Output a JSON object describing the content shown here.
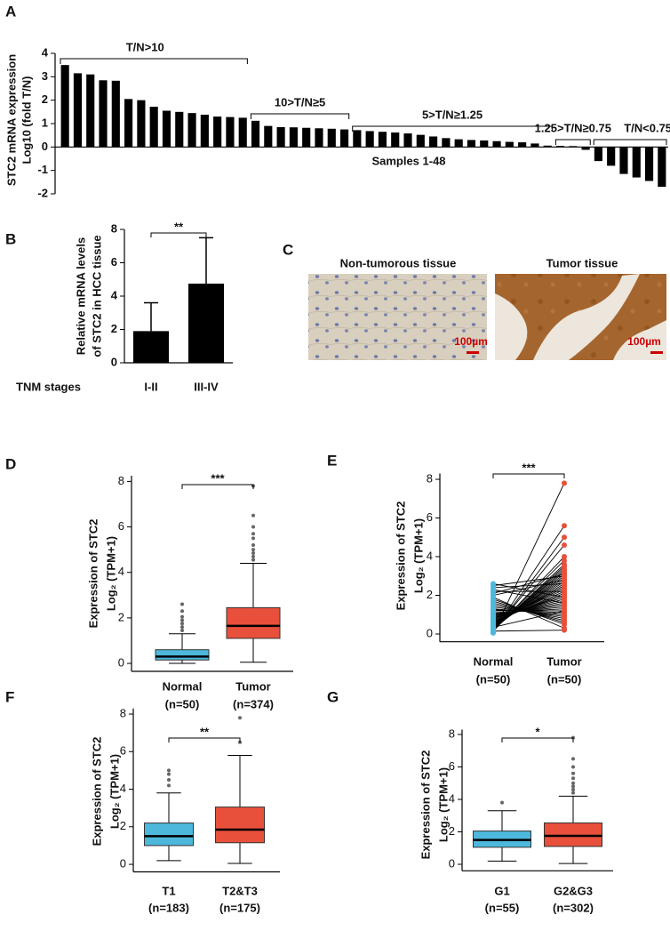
{
  "chart_data": [
    {
      "type": "waterfall_bar",
      "panel": "A",
      "ylabel": [
        "STC2 mRNA expression",
        "Log10 (fold T/N)"
      ],
      "xlabel": "Samples 1-48",
      "values": [
        3.5,
        3.15,
        3.1,
        2.85,
        2.83,
        2.05,
        2.0,
        1.72,
        1.55,
        1.5,
        1.45,
        1.38,
        1.3,
        1.28,
        1.25,
        1.12,
        0.9,
        0.85,
        0.84,
        0.82,
        0.8,
        0.78,
        0.75,
        0.72,
        0.68,
        0.65,
        0.62,
        0.58,
        0.52,
        0.45,
        0.38,
        0.33,
        0.3,
        0.28,
        0.25,
        0.22,
        0.2,
        0.15,
        0.06,
        0.05,
        0.04,
        -0.12,
        -0.6,
        -0.8,
        -1.15,
        -1.3,
        -1.45,
        -1.7
      ],
      "color": "#000000",
      "ylim": [
        -2,
        4
      ],
      "yticks": [
        -2,
        -1,
        0,
        1,
        2,
        3,
        4
      ],
      "annotations": [
        "T/N>10",
        "10>T/N≥5",
        "5>T/N≥1.25",
        "1.25>T/N≥0.75",
        "T/N<0.75"
      ]
    },
    {
      "type": "errorbar_bar",
      "panel": "B",
      "ylabel": [
        "Relative mRNA levels",
        "of STC2 in HCC tissue"
      ],
      "xlabel": "TNM stages",
      "categories": [
        "I-II",
        "III-IV"
      ],
      "values": [
        1.9,
        4.75
      ],
      "errors": [
        1.7,
        2.75
      ],
      "color": "#000000",
      "ylim": [
        0,
        8
      ],
      "yticks": [
        0,
        2,
        4,
        6,
        8
      ],
      "significance": "**"
    },
    {
      "type": "box",
      "panel": "D",
      "ylabel": [
        "Expression of STC2",
        "Log₂ (TPM+1)"
      ],
      "categories": [
        "Normal",
        "Tumor"
      ],
      "n_labels": [
        "(n=50)",
        "(n=374)"
      ],
      "colors": [
        "#4db8dc",
        "#e8503c"
      ],
      "ylim": [
        -0.35,
        8.25
      ],
      "yticks": [
        0,
        2,
        4,
        6,
        8
      ],
      "significance": "***",
      "boxes": [
        {
          "whisker_low": 0.0,
          "q1": 0.15,
          "median": 0.3,
          "q3": 0.6,
          "whisker_high": 1.3,
          "outliers": [
            1.45,
            1.6,
            1.75,
            1.9,
            2.05,
            2.3,
            2.6
          ]
        },
        {
          "whisker_low": 0.05,
          "q1": 1.1,
          "median": 1.65,
          "q3": 2.45,
          "whisker_high": 4.4,
          "outliers": [
            4.55,
            4.7,
            4.85,
            5.0,
            5.2,
            5.5,
            5.7,
            6.0,
            6.5,
            7.8
          ]
        }
      ]
    },
    {
      "type": "paired",
      "panel": "E",
      "ylabel": [
        "Expression of STC2",
        "Log₂ (TPM+1)"
      ],
      "n_labels": [
        "(n=50)",
        "(n=50)"
      ],
      "ylim": [
        -0.4,
        8.3
      ],
      "yticks": [
        0,
        2,
        4,
        6,
        8
      ],
      "significance": "***",
      "series": [
        {
          "name": "Normal",
          "color": "#4db8dc",
          "values": [
            0.05,
            0.1,
            0.1,
            0.15,
            0.15,
            0.2,
            0.2,
            0.2,
            0.25,
            0.25,
            0.3,
            0.3,
            0.3,
            0.35,
            0.4,
            0.4,
            0.45,
            0.5,
            0.5,
            0.55,
            0.6,
            0.6,
            0.65,
            0.7,
            0.75,
            0.8,
            0.85,
            0.9,
            0.95,
            1.0,
            1.05,
            1.1,
            1.2,
            1.25,
            1.3,
            1.4,
            1.5,
            1.6,
            1.7,
            1.8,
            1.9,
            2.0,
            2.1,
            2.2,
            2.3,
            2.4,
            2.5,
            2.6,
            0.15,
            0.35
          ]
        },
        {
          "name": "Tumor",
          "color": "#e8503c",
          "values": [
            7.8,
            5.6,
            5.0,
            4.6,
            4.0,
            3.8,
            3.6,
            3.5,
            3.4,
            3.3,
            3.2,
            3.1,
            3.0,
            2.9,
            2.8,
            2.7,
            2.6,
            2.5,
            2.5,
            2.4,
            2.3,
            2.2,
            2.1,
            2.0,
            2.0,
            1.9,
            1.8,
            1.7,
            1.6,
            1.5,
            1.4,
            1.3,
            1.2,
            1.1,
            1.0,
            0.9,
            0.8,
            0.7,
            0.6,
            0.5,
            0.3,
            2.8,
            3.1,
            2.2,
            1.6,
            2.6,
            3.0,
            1.9,
            0.2,
            1.2
          ]
        }
      ]
    },
    {
      "type": "box",
      "panel": "F",
      "ylabel": [
        "Expression of STC2",
        "Log₂ (TPM+1)"
      ],
      "categories": [
        "T1",
        "T2&T3"
      ],
      "n_labels": [
        "(n=183)",
        "(n=175)"
      ],
      "colors": [
        "#4db8dc",
        "#e8503c"
      ],
      "ylim": [
        -0.4,
        8.3
      ],
      "yticks": [
        0,
        2,
        4,
        6,
        8
      ],
      "significance": "**",
      "boxes": [
        {
          "whisker_low": 0.2,
          "q1": 1.0,
          "median": 1.5,
          "q3": 2.2,
          "whisker_high": 3.8,
          "outliers": [
            4.2,
            4.5,
            4.8,
            5.0
          ]
        },
        {
          "whisker_low": 0.05,
          "q1": 1.15,
          "median": 1.85,
          "q3": 3.05,
          "whisker_high": 5.8,
          "outliers": [
            6.5,
            7.8
          ]
        }
      ]
    },
    {
      "type": "box",
      "panel": "G",
      "ylabel": [
        "Expression of STC2",
        "Log₂ (TPM+1)"
      ],
      "categories": [
        "G1",
        "G2&G3"
      ],
      "n_labels": [
        "(n=55)",
        "(n=302)"
      ],
      "colors": [
        "#4db8dc",
        "#e8503c"
      ],
      "ylim": [
        -0.4,
        8.3
      ],
      "yticks": [
        0,
        2,
        4,
        6,
        8
      ],
      "significance": "*",
      "boxes": [
        {
          "whisker_low": 0.2,
          "q1": 1.05,
          "median": 1.5,
          "q3": 2.05,
          "whisker_high": 3.3,
          "outliers": [
            3.8
          ]
        },
        {
          "whisker_low": 0.05,
          "q1": 1.1,
          "median": 1.75,
          "q3": 2.55,
          "whisker_high": 4.2,
          "outliers": [
            4.4,
            4.6,
            4.8,
            5.0,
            5.3,
            5.6,
            6.0,
            6.5,
            7.8
          ]
        }
      ]
    }
  ],
  "panel_c": {
    "panel": "C",
    "images": [
      {
        "title": "Non-tumorous tissue",
        "scale_bar": "100µm"
      },
      {
        "title": "Tumor tissue",
        "scale_bar": "100µm"
      }
    ]
  }
}
